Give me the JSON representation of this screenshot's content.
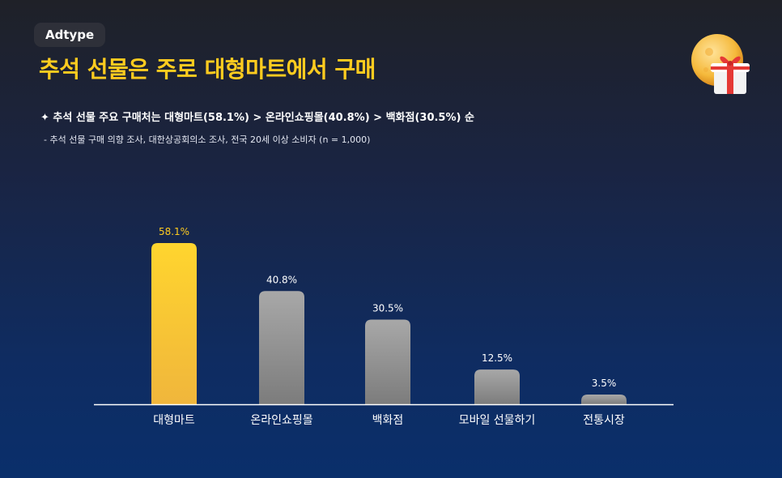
{
  "brand": "Adtype",
  "title": "추석 선물은 주로 대형마트에서 구매",
  "subtitle": "✦ 추석 선물 주요 구매처는 대형마트(58.1%) > 온라인쇼핑몰(40.8%) > 백화점(30.5%) 순",
  "note": "- 추석 선물 구매 의향 조사, 대한상공회의소 조사, 전국 20세 이상 소비자 (n = 1,000)",
  "decor_icons": [
    "moon-icon",
    "gift-icon"
  ],
  "colors": {
    "highlight": "#ffcc1f",
    "bar": "#a3a3a3",
    "axis": "#ffffff"
  },
  "chart_data": {
    "type": "bar",
    "categories": [
      "대형마트",
      "온라인쇼핑몰",
      "백화점",
      "모바일 선물하기",
      "전통시장"
    ],
    "values": [
      58.1,
      40.8,
      30.5,
      12.5,
      3.5
    ],
    "value_labels": [
      "58.1%",
      "40.8%",
      "30.5%",
      "12.5%",
      "3.5%"
    ],
    "highlight_index": 0,
    "title": "",
    "xlabel": "",
    "ylabel": "",
    "ylim": [
      0,
      58.1
    ],
    "grid": false,
    "legend": "none"
  }
}
